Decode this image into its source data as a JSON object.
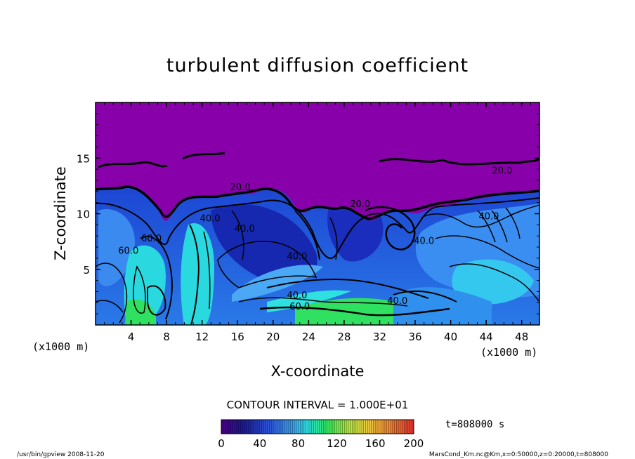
{
  "chart_data": {
    "type": "heatmap",
    "title": "turbulent diffusion coefficient",
    "xlabel": "X-coordinate",
    "ylabel": "Z-coordinate",
    "x_unit_left": "(x1000 m)",
    "x_unit_right": "(x1000 m)",
    "xlim": [
      0,
      50
    ],
    "ylim": [
      0,
      20
    ],
    "x_ticks": [
      4,
      8,
      12,
      16,
      20,
      24,
      28,
      32,
      36,
      40,
      44,
      48
    ],
    "y_ticks": [
      5,
      10,
      15
    ],
    "contour_labels": [
      {
        "text": "20.0",
        "x": 16.3,
        "y": 12.1
      },
      {
        "text": "20.0",
        "x": 29.8,
        "y": 10.6
      },
      {
        "text": "20.0",
        "x": 45.8,
        "y": 13.6
      },
      {
        "text": "40.0",
        "x": 12.9,
        "y": 9.3
      },
      {
        "text": "40.0",
        "x": 16.8,
        "y": 8.4
      },
      {
        "text": "40.0",
        "x": 22.7,
        "y": 5.9
      },
      {
        "text": "40.0",
        "x": 22.7,
        "y": 2.4
      },
      {
        "text": "40.0",
        "x": 34.0,
        "y": 1.9
      },
      {
        "text": "40.0",
        "x": 37.0,
        "y": 7.3
      },
      {
        "text": "40.0",
        "x": 44.3,
        "y": 9.5
      },
      {
        "text": "60.0",
        "x": 3.7,
        "y": 6.4
      },
      {
        "text": "60.0",
        "x": 6.3,
        "y": 7.5
      },
      {
        "text": "60.0",
        "x": 23.0,
        "y": 1.4
      }
    ],
    "contour_interval_text": "CONTOUR INTERVAL = 1.000E+01",
    "colorbar": {
      "min": 0,
      "max": 200,
      "ticks": [
        0,
        40,
        80,
        120,
        160,
        200
      ]
    },
    "time_label": "t=808000 s"
  },
  "footer": {
    "left": "/usr/bin/gpview   2008-11-20",
    "right": "MarsCond_Km.nc@Km,x=0:50000,z=0:20000,t=808000"
  },
  "colors": {
    "upper_purple": "#8800aa",
    "deep_blue": "#0a1fa8",
    "mid_blue": "#2d6cf0",
    "cyan": "#1ee6e6",
    "green": "#22e84a"
  }
}
